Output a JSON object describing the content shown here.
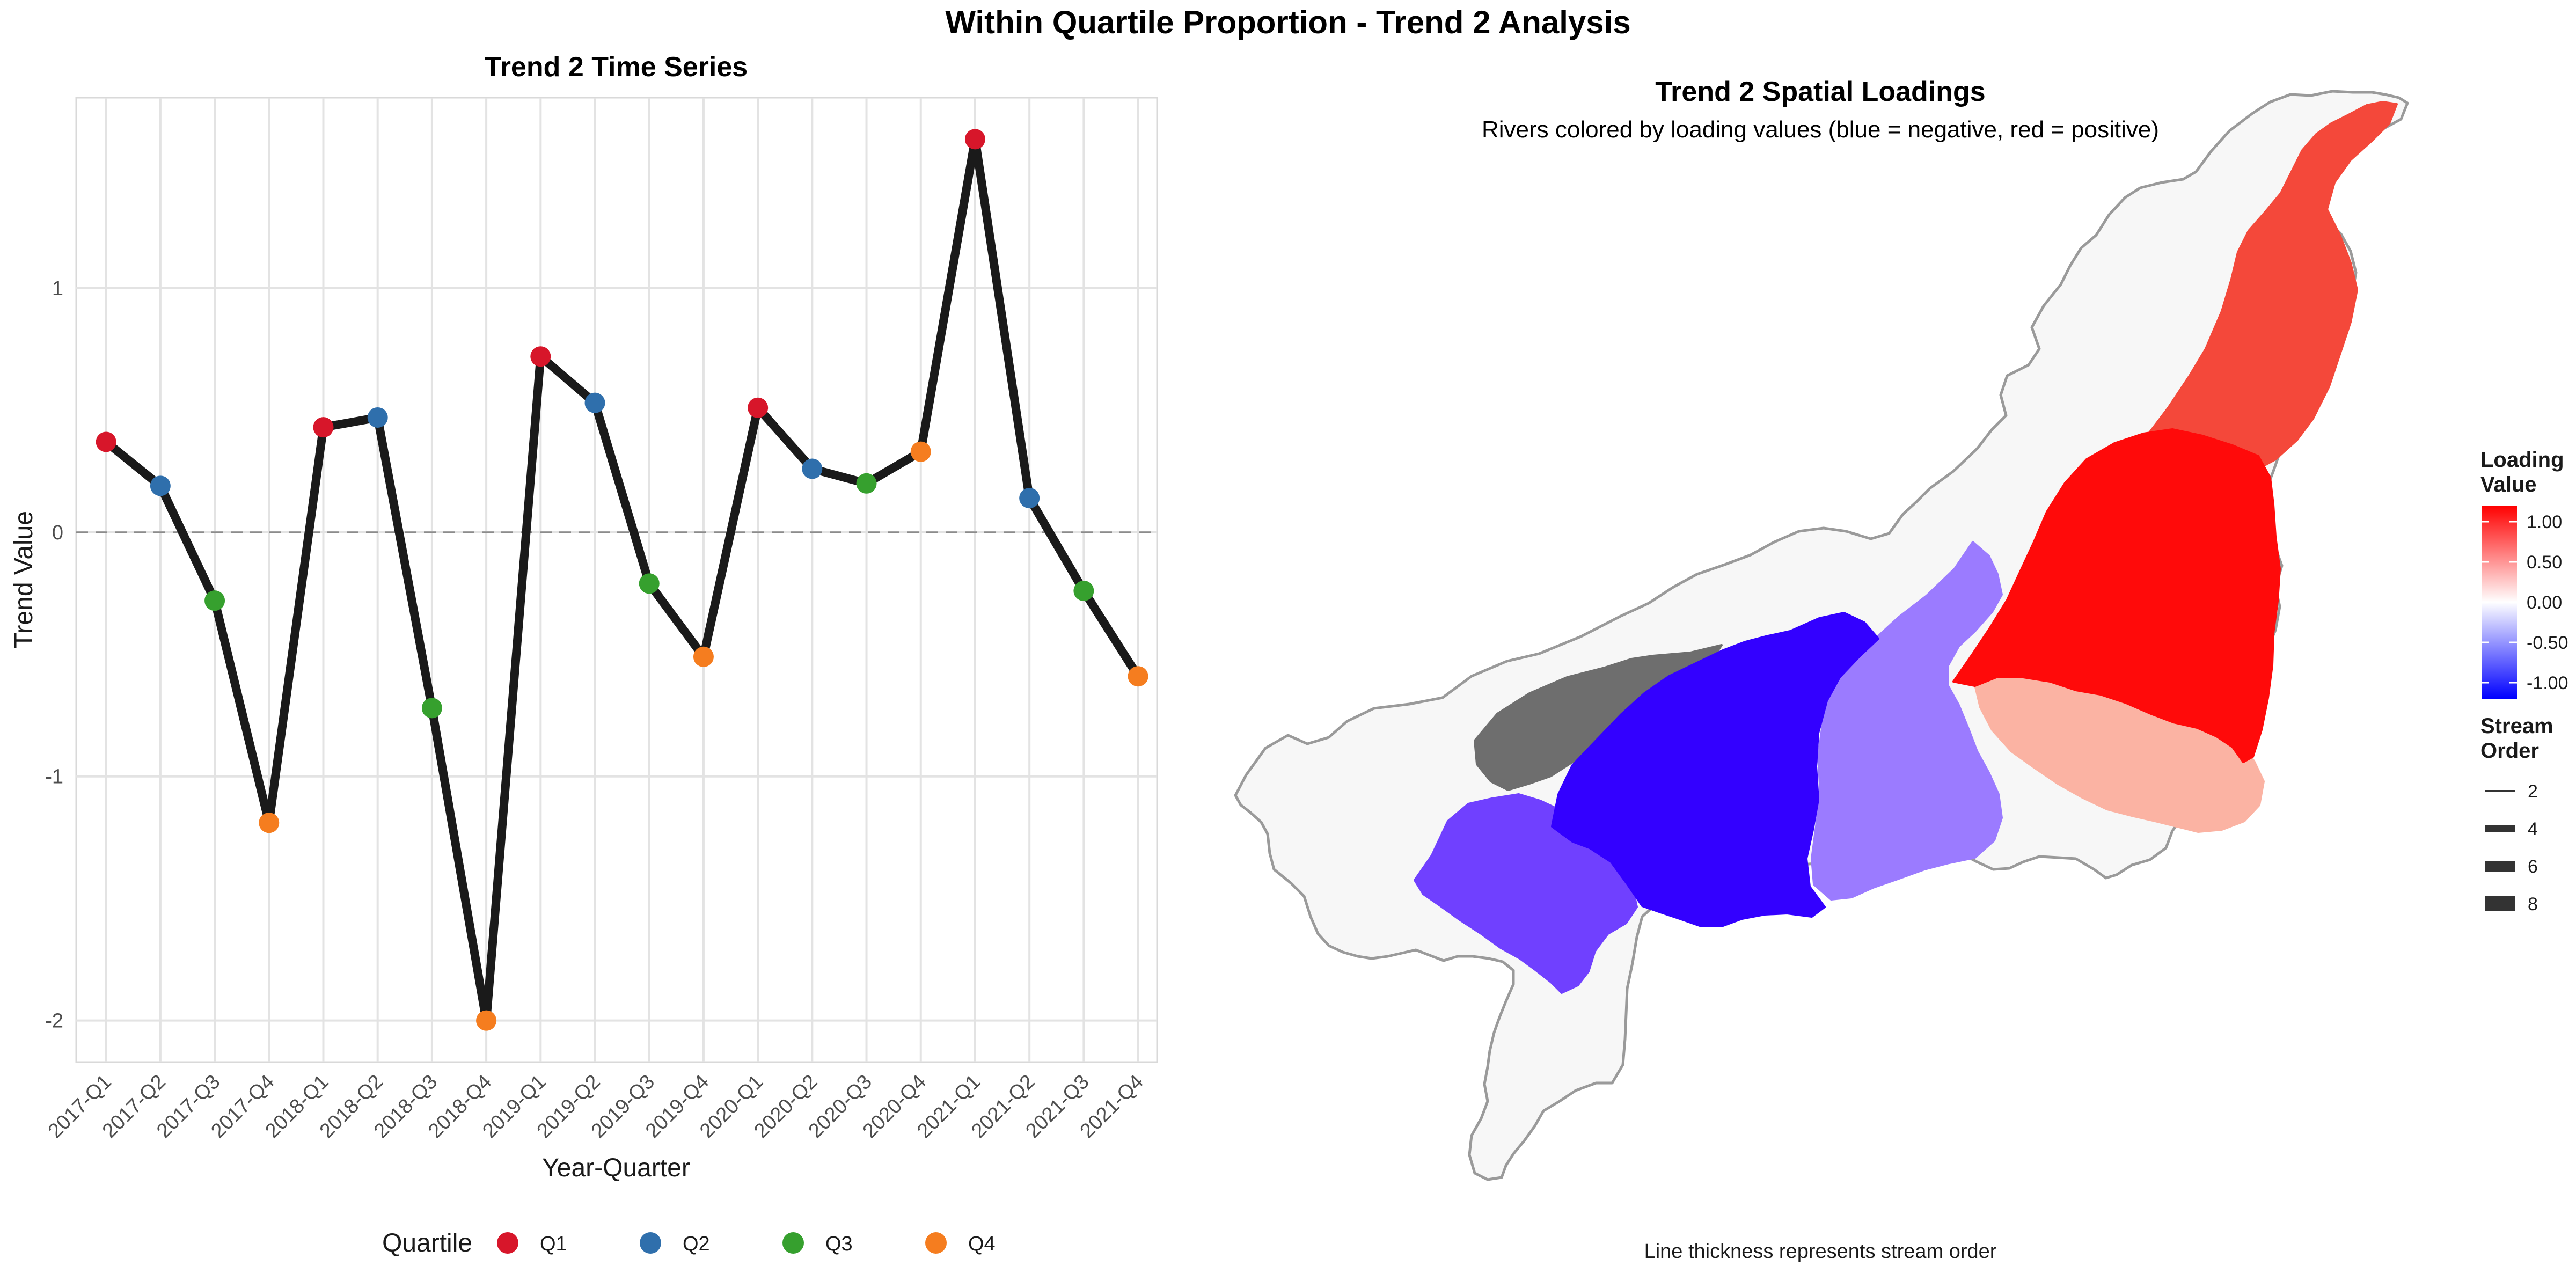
{
  "title": "Within Quartile Proportion - Trend 2 Analysis",
  "left_panel": {
    "subtitle": "Trend 2 Time Series",
    "legend_title": "Quartile"
  },
  "right_panel": {
    "title": "Trend 2 Spatial Loadings",
    "subtitle": "Rivers colored by loading values (blue = negative, red = positive)",
    "caption": "Line thickness represents stream order",
    "color_legend": {
      "title_line1": "Loading",
      "title_line2": "Value",
      "labels": [
        "1.00",
        "0.50",
        "0.00",
        "-0.50",
        "-1.00"
      ],
      "colors": [
        "#ff0000",
        "#ffffff",
        "#0000ff"
      ]
    },
    "size_legend": {
      "title_line1": "Stream",
      "title_line2": "Order",
      "labels": [
        "2",
        "4",
        "6",
        "8"
      ]
    },
    "map_colors": {
      "basin_fill": "#f7f7f7",
      "basin_border": "#9a9a9a",
      "strongly_positive": "#ff0a0a",
      "positive": "#f4483a",
      "weakly_positive": "#fbb3a3",
      "weakly_negative": "#9b7bff",
      "negative": "#3300ff",
      "moderately_negative": "#7040ff",
      "missing": "#6e6e6e"
    }
  },
  "chart_data": {
    "type": "line",
    "title": "Trend 2 Time Series",
    "xlabel": "Year-Quarter",
    "ylabel": "Trend Value",
    "ylim": [
      -2.17,
      1.78
    ],
    "yticks": [
      -2,
      -1,
      0,
      1
    ],
    "ytick_labels": [
      "-2",
      "-1",
      "0",
      "1"
    ],
    "reference_line": 0,
    "grid": true,
    "legend_position": "bottom",
    "categories": [
      "2017-Q1",
      "2017-Q2",
      "2017-Q3",
      "2017-Q4",
      "2018-Q1",
      "2018-Q2",
      "2018-Q3",
      "2018-Q4",
      "2019-Q1",
      "2019-Q2",
      "2019-Q3",
      "2019-Q4",
      "2020-Q1",
      "2020-Q2",
      "2020-Q3",
      "2020-Q4",
      "2021-Q1",
      "2021-Q2",
      "2021-Q3",
      "2021-Q4"
    ],
    "values": [
      0.37,
      0.19,
      -0.28,
      -1.19,
      0.43,
      0.47,
      -0.72,
      -2.0,
      0.72,
      0.53,
      -0.21,
      -0.51,
      0.51,
      0.26,
      0.2,
      0.33,
      1.61,
      0.14,
      -0.24,
      -0.59
    ],
    "quartile": [
      "Q1",
      "Q2",
      "Q3",
      "Q4",
      "Q1",
      "Q2",
      "Q3",
      "Q4",
      "Q1",
      "Q2",
      "Q3",
      "Q4",
      "Q1",
      "Q2",
      "Q3",
      "Q4",
      "Q1",
      "Q2",
      "Q3",
      "Q4"
    ],
    "series": [
      {
        "name": "Q1",
        "color": "#d7162a"
      },
      {
        "name": "Q2",
        "color": "#2f6fac"
      },
      {
        "name": "Q3",
        "color": "#36a02e"
      },
      {
        "name": "Q4",
        "color": "#f57d1f"
      }
    ],
    "line_color": "#1a1a1a"
  }
}
